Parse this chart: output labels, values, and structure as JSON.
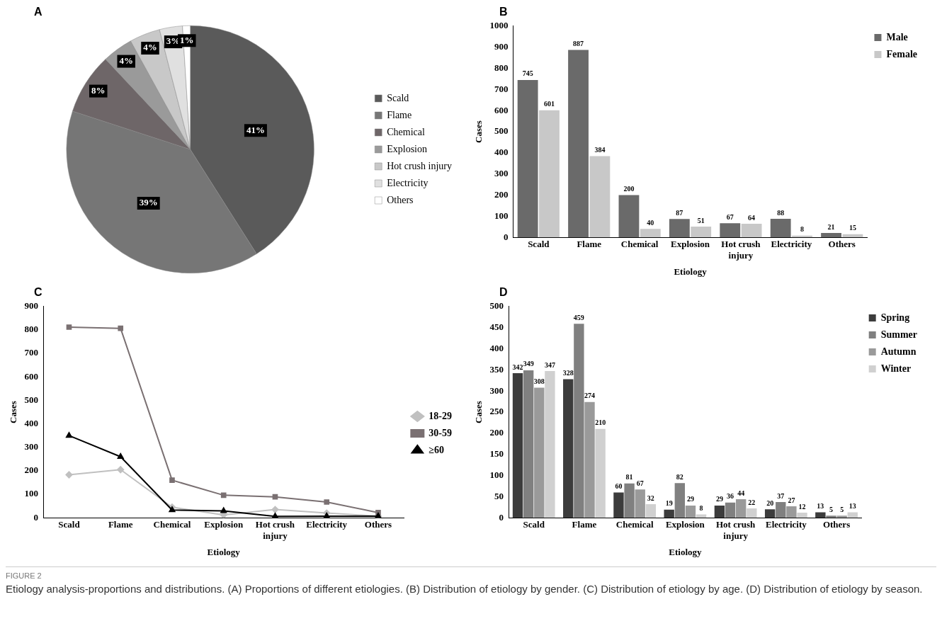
{
  "chart_data": [
    {
      "type": "pie",
      "title": "A",
      "categories": [
        "Scald",
        "Flame",
        "Chemical",
        "Explosion",
        "Hot crush injury",
        "Electricity",
        "Others"
      ],
      "values": [
        41,
        39,
        8,
        4,
        4,
        3,
        1
      ],
      "colors": [
        "#5a5a5a",
        "#767676",
        "#6e6668",
        "#9a9a9a",
        "#c8c8c8",
        "#e0e0e0",
        "#ffffff"
      ],
      "value_labels": [
        "41%",
        "39%",
        "8%",
        "4%",
        "4%",
        "3%",
        "1%"
      ],
      "legend": "right"
    },
    {
      "type": "bar",
      "title": "B",
      "xlabel": "Etiology",
      "ylabel": "Cases",
      "categories": [
        "Scald",
        "Flame",
        "Chemical",
        "Explosion",
        "Hot crush injury",
        "Electricity",
        "Others"
      ],
      "series": [
        {
          "name": "Male",
          "color": "#6a6a6a",
          "values": [
            745,
            887,
            200,
            87,
            67,
            88,
            21
          ]
        },
        {
          "name": "Female",
          "color": "#c8c8c8",
          "values": [
            601,
            384,
            40,
            51,
            64,
            8,
            15
          ]
        }
      ],
      "ylim": [
        0,
        1000
      ],
      "yticks": [
        0,
        100,
        200,
        300,
        400,
        500,
        600,
        700,
        800,
        900,
        1000
      ],
      "grid": false,
      "legend": "top right",
      "data_labels": true
    },
    {
      "type": "line",
      "title": "C",
      "xlabel": "Etiology",
      "ylabel": "Cases",
      "categories": [
        "Scald",
        "Flame",
        "Chemical",
        "Explosion",
        "Hot crush injury",
        "Electricity",
        "Others"
      ],
      "series": [
        {
          "name": "18-29",
          "color": "#c0c0c0",
          "marker": "diamond",
          "values": [
            183,
            205,
            45,
            12,
            35,
            20,
            7
          ]
        },
        {
          "name": "30-59",
          "color": "#7a7072",
          "marker": "square",
          "values": [
            812,
            807,
            160,
            96,
            89,
            67,
            22
          ]
        },
        {
          "name": "≥60",
          "color": "#000000",
          "marker": "triangle",
          "values": [
            350,
            260,
            33,
            29,
            6,
            7,
            7
          ]
        }
      ],
      "ylim": [
        0,
        900
      ],
      "yticks": [
        0,
        100,
        200,
        300,
        400,
        500,
        600,
        700,
        800,
        900
      ],
      "grid": false,
      "legend": "right",
      "line_style": "solid"
    },
    {
      "type": "bar",
      "title": "D",
      "xlabel": "Etiology",
      "ylabel": "Cases",
      "categories": [
        "Scald",
        "Flame",
        "Chemical",
        "Explosion",
        "Hot crush injury",
        "Electricity",
        "Others"
      ],
      "series": [
        {
          "name": "Spring",
          "color": "#3c3c3c",
          "values": [
            342,
            328,
            60,
            19,
            29,
            20,
            13
          ]
        },
        {
          "name": "Summer",
          "color": "#808080",
          "values": [
            349,
            459,
            81,
            82,
            36,
            37,
            5
          ]
        },
        {
          "name": "Autumn",
          "color": "#9a9a9a",
          "values": [
            308,
            274,
            67,
            29,
            44,
            27,
            5
          ]
        },
        {
          "name": "Winter",
          "color": "#d0d0d0",
          "values": [
            347,
            210,
            32,
            8,
            22,
            12,
            13
          ]
        }
      ],
      "ylim": [
        0,
        500
      ],
      "yticks": [
        0,
        50,
        100,
        150,
        200,
        250,
        300,
        350,
        400,
        450,
        500
      ],
      "grid": false,
      "legend": "top right",
      "data_labels": true
    },
    {
      "type": "other",
      "annotations": [
        "FIGURE 2",
        "Etiology analysis-proportions and distributions. (A) Proportions of different etiologies. (B) Distribution of etiology by gender. (C) Distribution of etiology by age. (D) Distribution of etiology by season."
      ]
    }
  ]
}
